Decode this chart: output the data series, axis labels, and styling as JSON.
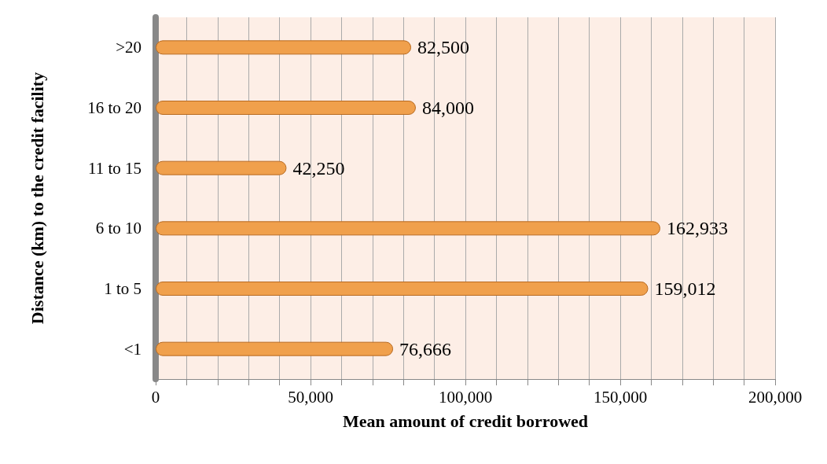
{
  "chart_data": {
    "type": "bar",
    "orientation": "horizontal",
    "xlabel": "Mean amount of credit borrowed",
    "ylabel": "Distance (km) to the credit facility",
    "categories": [
      ">20",
      "16 to 20",
      "11 to 15",
      "6 to 10",
      "1 to 5",
      "<1"
    ],
    "values": [
      82500,
      84000,
      42250,
      162933,
      159012,
      76666
    ],
    "value_labels": [
      "82,500",
      "84,000",
      "42,250",
      "162,933",
      "159,012",
      "76,666"
    ],
    "color": "#f0a04c",
    "xlim": [
      0,
      200000
    ],
    "xticks": [
      0,
      {
        "value": 10000,
        "label": null
      },
      {
        "value": 20000,
        "label": null
      },
      {
        "value": 30000,
        "label": null
      },
      {
        "value": 40000,
        "label": null
      },
      {
        "value": 50000,
        "label": "50,000"
      },
      {
        "value": 60000,
        "label": null
      },
      {
        "value": 70000,
        "label": null
      },
      {
        "value": 80000,
        "label": null
      },
      {
        "value": 90000,
        "label": null
      },
      {
        "value": 100000,
        "label": "100,000"
      },
      {
        "value": 110000,
        "label": null
      },
      {
        "value": 120000,
        "label": null
      },
      {
        "value": 130000,
        "label": null
      },
      {
        "value": 140000,
        "label": null
      },
      {
        "value": 150000,
        "label": "150,000"
      },
      {
        "value": 160000,
        "label": null
      },
      {
        "value": 170000,
        "label": null
      },
      {
        "value": 180000,
        "label": null
      },
      {
        "value": 190000,
        "label": null
      },
      {
        "value": 200000,
        "label": "200,000"
      }
    ],
    "grid": "x"
  }
}
